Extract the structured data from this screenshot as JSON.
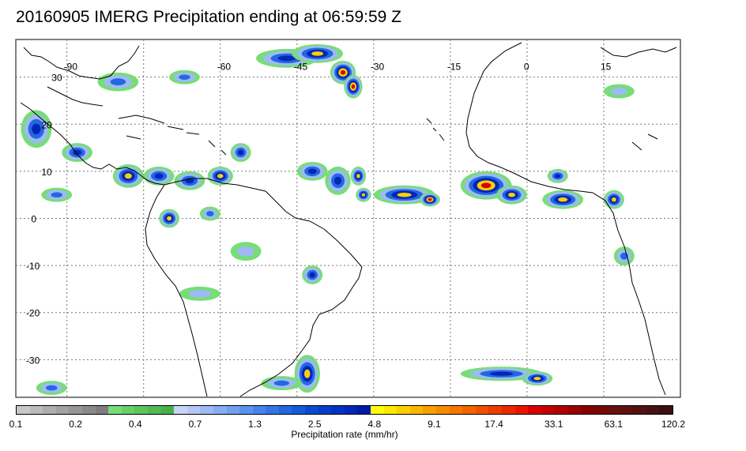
{
  "title": "20160905 IMERG Precipitation ending at 06:59:59 Z",
  "map": {
    "lon_range": [
      -100,
      30
    ],
    "lat_range": [
      -38,
      38
    ],
    "lon_labels": [
      "-90",
      "-60",
      "-45",
      "-30",
      "-15",
      "0",
      "15"
    ],
    "lon_values": [
      -90,
      -60,
      -45,
      -30,
      -15,
      0,
      15
    ],
    "lat_labels": [
      "30",
      "20",
      "10",
      "0",
      "-10",
      "-20",
      "-30"
    ],
    "lat_values": [
      30,
      20,
      10,
      0,
      -10,
      -20,
      -30
    ]
  },
  "colorbar": {
    "label": "Precipitation rate (mm/hr)",
    "tick_labels": [
      "0.1",
      "0.2",
      "0.4",
      "0.7",
      "1.3",
      "2.5",
      "4.8",
      "9.1",
      "17.4",
      "33.1",
      "63.1",
      "120.2"
    ],
    "colors": [
      "#c8c8c8",
      "#bbbbbb",
      "#aeaeae",
      "#a2a2a2",
      "#969696",
      "#8a8a8a",
      "#7e7e7e",
      "#77dd77",
      "#66d066",
      "#5cc55c",
      "#53ba53",
      "#49af49",
      "#c8d4f5",
      "#b3c6f5",
      "#9ebaf5",
      "#88acf2",
      "#72a0f0",
      "#5c92ee",
      "#4684ec",
      "#3576e6",
      "#2468e0",
      "#155ad8",
      "#0a4ad0",
      "#063ec8",
      "#0432c0",
      "#0226b8",
      "#001aa8",
      "#ffff00",
      "#fde800",
      "#fbd000",
      "#f9b800",
      "#f7a000",
      "#f58c00",
      "#f37800",
      "#f16400",
      "#ef5000",
      "#ed3c00",
      "#eb2800",
      "#e91400",
      "#d80000",
      "#c40000",
      "#b00000",
      "#9c0000",
      "#880000",
      "#780808",
      "#6a0e0e",
      "#5e1010",
      "#521212",
      "#461212",
      "#3a1010"
    ],
    "tick_index": [
      0,
      7,
      12,
      17,
      22,
      27,
      32,
      37,
      42,
      47,
      52,
      57
    ]
  },
  "precip": [
    {
      "lon": -47,
      "lat": 34,
      "rx": 6,
      "ry": 2,
      "level": 3
    },
    {
      "lon": -41,
      "lat": 35,
      "rx": 5,
      "ry": 2,
      "level": 4
    },
    {
      "lon": -36,
      "lat": 31,
      "rx": 2.5,
      "ry": 2.5,
      "level": 5
    },
    {
      "lon": -34,
      "lat": 28,
      "rx": 1.8,
      "ry": 2.5,
      "level": 5
    },
    {
      "lon": -80,
      "lat": 29,
      "rx": 4,
      "ry": 2,
      "level": 2
    },
    {
      "lon": -67,
      "lat": 30,
      "rx": 3,
      "ry": 1.5,
      "level": 2
    },
    {
      "lon": -96,
      "lat": 19,
      "rx": 3,
      "ry": 4,
      "level": 3
    },
    {
      "lon": -88,
      "lat": 14,
      "rx": 3,
      "ry": 2,
      "level": 3
    },
    {
      "lon": -78,
      "lat": 9,
      "rx": 3,
      "ry": 2.5,
      "level": 4
    },
    {
      "lon": -72,
      "lat": 9,
      "rx": 3,
      "ry": 2,
      "level": 3
    },
    {
      "lon": -66,
      "lat": 8,
      "rx": 3,
      "ry": 2,
      "level": 3
    },
    {
      "lon": -60,
      "lat": 9,
      "rx": 2.5,
      "ry": 2,
      "level": 4
    },
    {
      "lon": -56,
      "lat": 14,
      "rx": 2,
      "ry": 2,
      "level": 3
    },
    {
      "lon": -70,
      "lat": 0,
      "rx": 2,
      "ry": 2,
      "level": 4
    },
    {
      "lon": -62,
      "lat": 1,
      "rx": 2,
      "ry": 1.5,
      "level": 2
    },
    {
      "lon": -92,
      "lat": 5,
      "rx": 3,
      "ry": 1.5,
      "level": 2
    },
    {
      "lon": -55,
      "lat": -7,
      "rx": 3,
      "ry": 2,
      "level": 1
    },
    {
      "lon": -64,
      "lat": -16,
      "rx": 4,
      "ry": 1.5,
      "level": 1
    },
    {
      "lon": -42,
      "lat": 10,
      "rx": 3,
      "ry": 2,
      "level": 3
    },
    {
      "lon": -37,
      "lat": 8,
      "rx": 2.5,
      "ry": 3,
      "level": 3
    },
    {
      "lon": -33,
      "lat": 9,
      "rx": 1.5,
      "ry": 2,
      "level": 4
    },
    {
      "lon": -32,
      "lat": 5,
      "rx": 1.5,
      "ry": 1.5,
      "level": 4
    },
    {
      "lon": -24,
      "lat": 5,
      "rx": 6,
      "ry": 2,
      "level": 4
    },
    {
      "lon": -19,
      "lat": 4,
      "rx": 2,
      "ry": 1.5,
      "level": 5
    },
    {
      "lon": -8,
      "lat": 7,
      "rx": 5,
      "ry": 3,
      "level": 5
    },
    {
      "lon": -3,
      "lat": 5,
      "rx": 3,
      "ry": 2,
      "level": 4
    },
    {
      "lon": 7,
      "lat": 4,
      "rx": 4,
      "ry": 2,
      "level": 4
    },
    {
      "lon": 6,
      "lat": 9,
      "rx": 2,
      "ry": 1.5,
      "level": 3
    },
    {
      "lon": 17,
      "lat": 4,
      "rx": 2,
      "ry": 2,
      "level": 4
    },
    {
      "lon": 19,
      "lat": -8,
      "rx": 2,
      "ry": 2,
      "level": 2
    },
    {
      "lon": -42,
      "lat": -12,
      "rx": 2,
      "ry": 2,
      "level": 3
    },
    {
      "lon": -43,
      "lat": -33,
      "rx": 2.5,
      "ry": 4,
      "level": 4
    },
    {
      "lon": -48,
      "lat": -35,
      "rx": 4,
      "ry": 1.5,
      "level": 2
    },
    {
      "lon": -5,
      "lat": -33,
      "rx": 8,
      "ry": 1.5,
      "level": 3
    },
    {
      "lon": 2,
      "lat": -34,
      "rx": 3,
      "ry": 1.5,
      "level": 4
    },
    {
      "lon": -93,
      "lat": -36,
      "rx": 3,
      "ry": 1.5,
      "level": 2
    },
    {
      "lon": 18,
      "lat": 27,
      "rx": 3,
      "ry": 1.5,
      "level": 1
    }
  ],
  "precip_colors": [
    "#77dd77",
    "#9ebaf5",
    "#2468e0",
    "#0226b8",
    "#fbd000",
    "#d80000"
  ]
}
